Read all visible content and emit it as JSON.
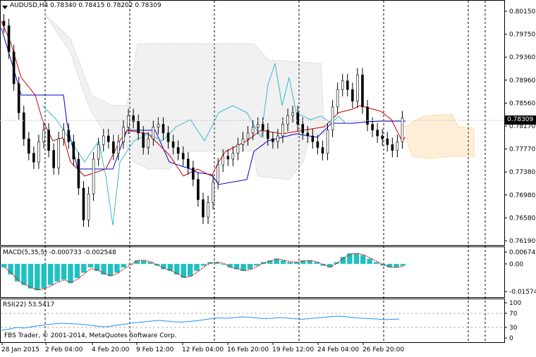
{
  "main": {
    "symbol_line": "AUDUSD,H4  0.78340 0.78415 0.78202 0.78309",
    "current_price": "0.78309",
    "price_ticks": [
      "0.80150",
      "0.79750",
      "0.79360",
      "0.78960",
      "0.78560",
      "0.78170",
      "0.77770",
      "0.77380",
      "0.76980",
      "0.76580",
      "0.76190"
    ],
    "ylim": [
      0.7619,
      0.8015
    ]
  },
  "macd": {
    "label": "MACD(5,35,5) -0.000733 -0.002548",
    "ticks": [
      "0.006742",
      "0.00",
      "-0.015746"
    ]
  },
  "rsi": {
    "label": "RSI(22) 53.5417",
    "ticks": [
      "100",
      "70",
      "30",
      "0"
    ],
    "current": 53.5417
  },
  "time_axis": [
    "28 Jan 2015",
    "2 Feb 04:00",
    "4 Feb 20:00",
    "9 Feb 12:00",
    "12 Feb 04:00",
    "16 Feb 20:00",
    "19 Feb 12:00",
    "24 Feb 04:00",
    "26 Feb 20:00"
  ],
  "copyright": "FBS Trader, © 2001-2014, MetaQuotes Software Corp.",
  "colors": {
    "candles": "#000000",
    "tenkan": "#cc0000",
    "kijun": "#0000cc",
    "chikou": "#33bbcc",
    "kumo_up": "#ffa020",
    "kumo_down": "#b0b0b0",
    "macd_hist": "#20c0c0",
    "macd_signal": "#cc0000",
    "rsi_line": "#1e90ff"
  },
  "chart_data": {
    "type": "candlestick",
    "closes": [
      0.799,
      0.7945,
      0.789,
      0.784,
      0.7795,
      0.777,
      0.7755,
      0.779,
      0.781,
      0.7775,
      0.7745,
      0.7795,
      0.781,
      0.779,
      0.776,
      0.771,
      0.7655,
      0.77,
      0.776,
      0.7785,
      0.78,
      0.779,
      0.777,
      0.779,
      0.7815,
      0.7835,
      0.7825,
      0.7805,
      0.778,
      0.7795,
      0.7815,
      0.782,
      0.7805,
      0.779,
      0.778,
      0.777,
      0.776,
      0.7745,
      0.7725,
      0.769,
      0.766,
      0.7685,
      0.772,
      0.775,
      0.7765,
      0.776,
      0.777,
      0.7785,
      0.7795,
      0.7805,
      0.7815,
      0.782,
      0.781,
      0.7795,
      0.779,
      0.78,
      0.782,
      0.7835,
      0.784,
      0.782,
      0.7805,
      0.78,
      0.779,
      0.778,
      0.777,
      0.781,
      0.785,
      0.788,
      0.7895,
      0.788,
      0.786,
      0.7905,
      0.785,
      0.782,
      0.781,
      0.78,
      0.7795,
      0.7785,
      0.7775,
      0.779,
      0.7831
    ],
    "macd_hist": [
      -0.002,
      -0.006,
      -0.01,
      -0.012,
      -0.014,
      -0.015,
      -0.014,
      -0.012,
      -0.01,
      -0.009,
      -0.011,
      -0.008,
      -0.005,
      -0.002,
      -0.004,
      -0.006,
      -0.007,
      -0.005,
      -0.002,
      0.0,
      0.002,
      0.002,
      0.001,
      -0.001,
      -0.003,
      -0.004,
      -0.006,
      -0.008,
      -0.007,
      -0.004,
      -0.001,
      0.001,
      0.001,
      0.0,
      -0.002,
      -0.003,
      -0.004,
      -0.003,
      -0.001,
      0.001,
      0.002,
      0.003,
      0.002,
      0.001,
      0.001,
      0.002,
      0.002,
      0.001,
      -0.001,
      -0.002,
      0.001,
      0.004,
      0.006,
      0.006,
      0.005,
      0.003,
      0.001,
      -0.001,
      -0.002,
      -0.002,
      -0.001
    ],
    "rsi": [
      22,
      25,
      30,
      28,
      32,
      35,
      38,
      40,
      42,
      41,
      40,
      38,
      36,
      33,
      32,
      35,
      38,
      41,
      44,
      46,
      48,
      50,
      48,
      46,
      45,
      47,
      49,
      52,
      55,
      57,
      56,
      58,
      60,
      59,
      57,
      55,
      56,
      58,
      57,
      55,
      53,
      55,
      57,
      59,
      61,
      62,
      60,
      58,
      56,
      55,
      54,
      52,
      53,
      54
    ]
  }
}
